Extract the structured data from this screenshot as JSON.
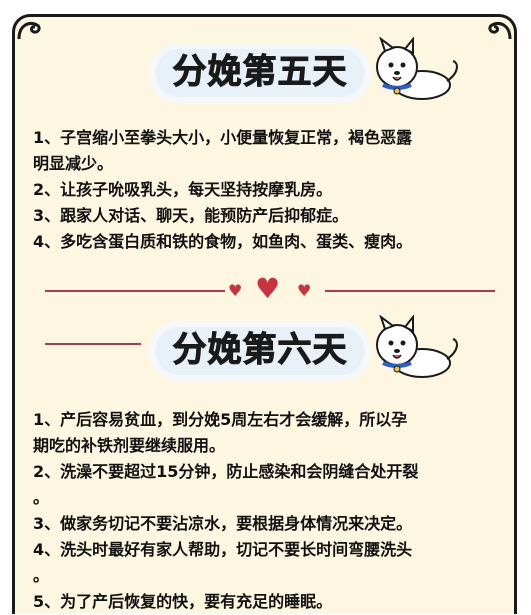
{
  "section1": {
    "title": "分娩第五天",
    "items": [
      "1、子宫缩小至拳头大小，小便量恢复正常，褐色恶露",
      "明显减少。",
      "2、让孩子吮吸乳头，每天坚持按摩乳房。",
      "3、跟家人对话、聊天，能预防产后抑郁症。",
      "4、多吃含蛋白质和铁的食物，如鱼肉、蛋类、瘦肉。"
    ]
  },
  "section2": {
    "title": "分娩第六天",
    "items": [
      "1、产后容易贫血，到分娩5周左右才会缓解，所以孕",
      "期吃的补铁剂要继续服用。",
      "2、洗澡不要超过15分钟，防止感染和会阴缝合处开裂",
      "。",
      "3、做家务切记不要沾凉水，要根据身体情况来决定。",
      "4、洗头时最好有家人帮助，切记不要长时间弯腰洗头",
      "。",
      "5、为了产后恢复的快，要有充足的睡眠。"
    ]
  },
  "colors": {
    "background": "#fdf7e2",
    "accent": "#c8333f",
    "border": "#1a1a1a"
  },
  "icons": {
    "corner": "curl-ornament-icon",
    "mascot": "white-dog-icon",
    "divider": "heart-icon"
  }
}
